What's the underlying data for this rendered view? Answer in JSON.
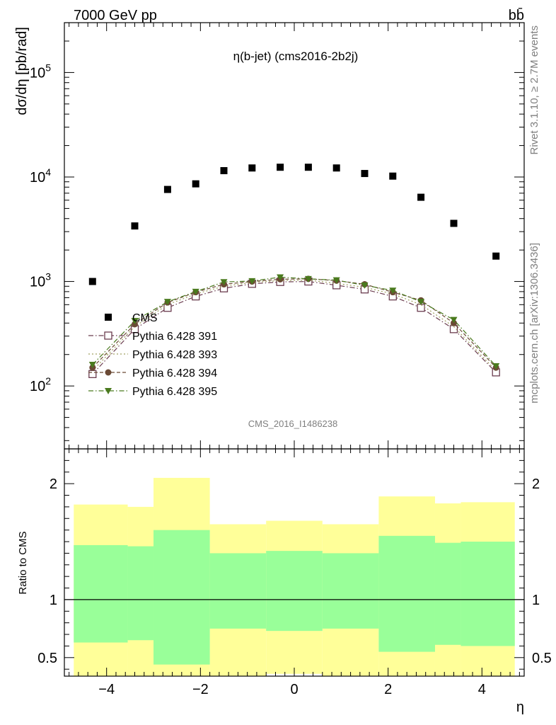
{
  "header": {
    "energy_label": "7000 GeV pp",
    "process_label": "bb̄",
    "plot_title": "η(b-jet) (cms2016-2b2j)",
    "ylabel_main": "dσ/dη [pb/rad]",
    "ylabel_ratio": "Ratio to CMS",
    "xlabel": "η",
    "side_label_top": "Rivet 3.1.10, ≥ 2.7M events",
    "side_label_bottom": "mcplots.cern.ch [arXiv:1306.3436]",
    "watermark": "CMS_2016_I1486238"
  },
  "chart_data": [
    {
      "type": "scatter",
      "panel": "main",
      "yscale": "log",
      "xlim": [
        -4.9,
        4.9
      ],
      "ylim": [
        25,
        300000
      ],
      "x_ticks": [
        -4,
        -2,
        0,
        2,
        4
      ],
      "y_tick_labels": [
        {
          "value": 100,
          "label": "10",
          "exp": "2"
        },
        {
          "value": 1000,
          "label": "10",
          "exp": "3"
        },
        {
          "value": 10000,
          "label": "10",
          "exp": "4"
        },
        {
          "value": 100000,
          "label": "10",
          "exp": "5"
        }
      ],
      "x": [
        -4.3,
        -3.4,
        -2.7,
        -2.1,
        -1.5,
        -0.9,
        -0.3,
        0.3,
        0.9,
        1.5,
        2.1,
        2.7,
        3.4,
        4.3
      ],
      "legend_position": "lower-left",
      "series": [
        {
          "name": "CMS",
          "marker": "filled-square",
          "color": "#000000",
          "line": "none",
          "values": [
            1000,
            3400,
            7600,
            8600,
            11500,
            12200,
            12400,
            12400,
            12200,
            10800,
            10200,
            6400,
            3600,
            1750
          ]
        },
        {
          "name": "Pythia 6.428 391",
          "marker": "open-square",
          "color": "#6b3d4f",
          "line": "dash-dot",
          "values": [
            130,
            350,
            560,
            720,
            860,
            950,
            990,
            1000,
            920,
            840,
            720,
            560,
            350,
            135
          ]
        },
        {
          "name": "Pythia 6.428 393",
          "marker": "none",
          "color": "#a0a060",
          "line": "dotted",
          "values": [
            140,
            370,
            600,
            760,
            900,
            980,
            1020,
            1030,
            960,
            880,
            760,
            600,
            370,
            140
          ]
        },
        {
          "name": "Pythia 6.428 394",
          "marker": "filled-circle",
          "color": "#6b4a35",
          "line": "dashed",
          "values": [
            150,
            390,
            630,
            790,
            940,
            1000,
            1050,
            1060,
            1020,
            940,
            790,
            660,
            400,
            150
          ]
        },
        {
          "name": "Pythia 6.428 395",
          "marker": "filled-triangle-down",
          "color": "#4a7a1e",
          "line": "dash-dot",
          "values": [
            160,
            420,
            640,
            800,
            990,
            1010,
            1100,
            1060,
            1030,
            920,
            820,
            640,
            430,
            155
          ]
        }
      ]
    },
    {
      "type": "area",
      "panel": "ratio",
      "xlim": [
        -4.9,
        4.9
      ],
      "ylim": [
        0.34,
        2.3
      ],
      "x_ticks": [
        -4,
        -2,
        0,
        2,
        4
      ],
      "y_ticks": [
        0.5,
        1,
        2
      ],
      "y_tick_labels": [
        "0.5",
        "1",
        "2"
      ],
      "reference_line": 1,
      "bins": [
        [
          -4.7,
          -3.55
        ],
        [
          -3.55,
          -3.0
        ],
        [
          -3.0,
          -1.8
        ],
        [
          -1.8,
          -0.6
        ],
        [
          -0.6,
          0.6
        ],
        [
          0.6,
          1.8
        ],
        [
          1.8,
          3.0
        ],
        [
          3.0,
          3.55
        ],
        [
          3.55,
          4.7
        ]
      ],
      "series": [
        {
          "name": "",
          "color": "#ffff99",
          "upper": [
            1.82,
            1.8,
            2.05,
            1.65,
            1.68,
            1.65,
            1.89,
            1.83,
            1.84
          ],
          "lower": [
            0.33,
            0.33,
            0.33,
            0.34,
            0.36,
            0.33,
            0.33,
            0.33,
            0.33
          ]
        },
        {
          "name": "",
          "color": "#99ff99",
          "upper": [
            1.47,
            1.46,
            1.6,
            1.4,
            1.42,
            1.4,
            1.55,
            1.49,
            1.5
          ],
          "lower": [
            0.63,
            0.65,
            0.44,
            0.75,
            0.73,
            0.75,
            0.55,
            0.61,
            0.6
          ]
        }
      ]
    }
  ]
}
